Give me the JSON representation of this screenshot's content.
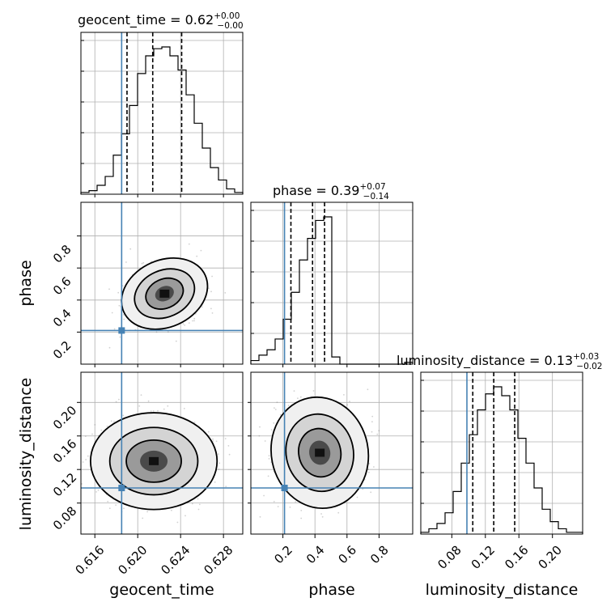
{
  "chart_data": {
    "type": "corner",
    "parameters": [
      "geocent_time",
      "phase",
      "luminosity_distance"
    ],
    "axis_labels": {
      "geocent_time": "geocent_time",
      "phase": "phase",
      "luminosity_distance": "luminosity_distance"
    },
    "ranges": {
      "geocent_time": [
        0.6147,
        0.6298
      ],
      "phase": [
        0.0,
        1.01
      ],
      "luminosity_distance": [
        0.043,
        0.236
      ]
    },
    "ticks": {
      "geocent_time": [
        "0.616",
        "0.620",
        "0.624",
        "0.628"
      ],
      "phase": [
        "0.2",
        "0.4",
        "0.6",
        "0.8"
      ],
      "luminosity_distance": [
        "0.08",
        "0.12",
        "0.16",
        "0.20"
      ],
      "phase_y": [
        "0.2",
        "0.4",
        "0.6",
        "0.8"
      ],
      "luminosity_distance_y": [
        "0.08",
        "0.12",
        "0.16",
        "0.20"
      ]
    },
    "titles": {
      "geocent_time": {
        "param": "geocent_time",
        "median": "0.62",
        "plus": "+0.00",
        "minus": "−0.00"
      },
      "phase": {
        "param": "phase",
        "median": "0.39",
        "plus": "+0.07",
        "minus": "−0.14"
      },
      "luminosity_distance": {
        "param": "luminosity_distance",
        "median": "0.13",
        "plus": "+0.03",
        "minus": "−0.02"
      }
    },
    "truths": {
      "geocent_time": 0.6185,
      "phase": 0.21,
      "luminosity_distance": 0.098
    },
    "quantiles": {
      "geocent_time": [
        0.619,
        0.6214,
        0.6241
      ],
      "phase": [
        0.25,
        0.385,
        0.46
      ],
      "luminosity_distance": [
        0.105,
        0.13,
        0.155
      ]
    },
    "histograms": {
      "geocent_time": [
        1,
        2,
        5,
        10,
        22,
        34,
        50,
        68,
        78,
        82,
        83,
        78,
        70,
        56,
        40,
        26,
        15,
        8,
        3,
        1
      ],
      "phase": [
        2,
        5,
        8,
        14,
        25,
        40,
        58,
        70,
        80,
        82,
        4,
        0,
        0,
        0,
        0,
        0,
        0,
        0,
        0,
        1
      ],
      "luminosity_distance": [
        1,
        3,
        6,
        12,
        24,
        40,
        56,
        70,
        79,
        83,
        78,
        70,
        54,
        40,
        26,
        14,
        7,
        3,
        1,
        1
      ]
    },
    "density_centers": {
      "phase_vs_geocent_time": {
        "x": 0.6225,
        "y": 0.44
      },
      "luminosity_distance_vs_geocent_time": {
        "x": 0.6215,
        "y": 0.13
      },
      "luminosity_distance_vs_phase": {
        "x": 0.43,
        "y": 0.14
      }
    },
    "grid": true,
    "colors": {
      "truth": "#4682b4",
      "hist": "#000000",
      "contour": "#000000"
    }
  }
}
